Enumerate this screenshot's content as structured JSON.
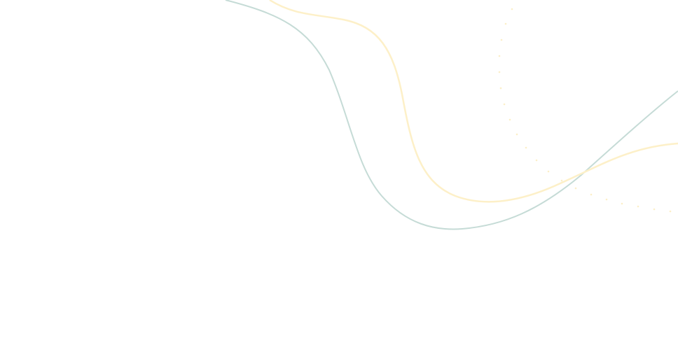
{
  "background": {
    "colors": {
      "background": "#ffffff",
      "teal_curve": "#c5dbd6",
      "yellow_curve": "#fdf0c8",
      "dots": "#fcefc8"
    }
  }
}
